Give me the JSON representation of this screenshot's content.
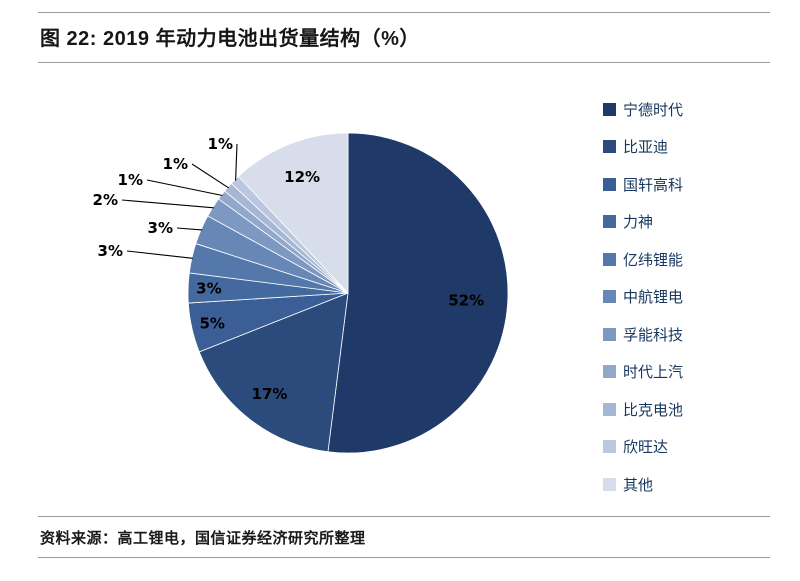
{
  "figure": {
    "title": "图 22: 2019 年动力电池出货量结构（%）",
    "source": "资料来源：高工锂电，国信证券经济研究所整理"
  },
  "chart_data": {
    "type": "pie",
    "title": "2019 年动力电池出货量结构（%）",
    "start_angle_deg": 0,
    "direction": "clockwise",
    "legend_position": "right",
    "slices": [
      {
        "label": "宁德时代",
        "value": 52,
        "pct_label": "52%",
        "color": "#1F3A68"
      },
      {
        "label": "比亚迪",
        "value": 17,
        "pct_label": "17%",
        "color": "#2A4B7C"
      },
      {
        "label": "国轩高科",
        "value": 5,
        "pct_label": "5%",
        "color": "#3A5E95"
      },
      {
        "label": "力神",
        "value": 3,
        "pct_label": "3%",
        "color": "#44699F"
      },
      {
        "label": "亿纬锂能",
        "value": 3,
        "pct_label": "3%",
        "color": "#5578AB"
      },
      {
        "label": "中航锂电",
        "value": 3,
        "pct_label": "3%",
        "color": "#6788B7"
      },
      {
        "label": "孚能科技",
        "value": 2,
        "pct_label": "2%",
        "color": "#7D99C1"
      },
      {
        "label": "时代上汽",
        "value": 1,
        "pct_label": "1%",
        "color": "#91A8CB"
      },
      {
        "label": "比克电池",
        "value": 1,
        "pct_label": "1%",
        "color": "#A5B7D5"
      },
      {
        "label": "欣旺达",
        "value": 1,
        "pct_label": "1%",
        "color": "#BAC7DF"
      },
      {
        "label": "其他",
        "value": 12,
        "pct_label": "12%",
        "color": "#D7DDEA"
      }
    ]
  }
}
